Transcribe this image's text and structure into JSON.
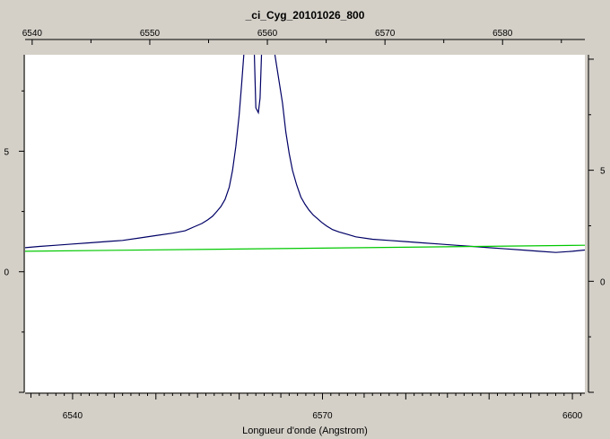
{
  "chart_data": {
    "type": "line",
    "title": "_ci_Cyg_20101026_800",
    "xlabel": "Longueur d'onde (Angstrom)",
    "ylabel": "",
    "xlim": [
      6534.3,
      6601.5
    ],
    "ylim": [
      -5.0,
      9.0
    ],
    "top_xlim": [
      6539.4,
      6587.0
    ],
    "right_ylim": [
      -5.0,
      10.2
    ],
    "x_ticks": [
      6540,
      6550,
      6560,
      6570,
      6580,
      6590,
      6600
    ],
    "x_tick_labels": [
      "6540",
      "",
      "6570",
      "",
      "6600"
    ],
    "x_tick_label_values": [
      6540,
      6550,
      6570,
      6590,
      6600
    ],
    "x_minor_step": 1,
    "top_ticks": [
      6540,
      6550,
      6560,
      6570,
      6580
    ],
    "top_tick_labels": [
      "6540",
      "6550",
      "6560",
      "6570",
      "6580"
    ],
    "top_minor_step": 5,
    "y_ticks": [
      -5,
      0,
      5
    ],
    "y_tick_labels": [
      "",
      "0",
      "5"
    ],
    "y_minor_step": 2.5,
    "right_ticks": [
      -5,
      0,
      5,
      10
    ],
    "right_tick_labels": [
      "",
      "0",
      "5",
      ""
    ],
    "right_minor_step": 2.5,
    "grid": false,
    "legend": "none",
    "series": [
      {
        "color": "#000066",
        "x": [
          6534.3,
          6536,
          6538,
          6540,
          6542,
          6544,
          6546,
          6548,
          6550,
          6552,
          6553.5,
          6554.5,
          6555.5,
          6556.2,
          6556.8,
          6557.3,
          6557.8,
          6558.3,
          6558.8,
          6559.2,
          6559.6,
          6560,
          6560.3,
          6560.6,
          6561.0,
          6561.8,
          6562.0,
          6562.3,
          6562.5,
          6562.7,
          6563.0,
          6564.2,
          6565.2,
          6565.6,
          6566.0,
          6566.4,
          6566.9,
          6567.4,
          6567.9,
          6568.4,
          6568.9,
          6569.4,
          6569.9,
          6570.5,
          6571.2,
          6572,
          6573,
          6574,
          6576,
          6578,
          6580,
          6582,
          6584,
          6586,
          6588,
          6590,
          6592,
          6594,
          6596,
          6598,
          6600,
          6601.5
        ],
        "y": [
          1.0,
          1.05,
          1.1,
          1.15,
          1.2,
          1.25,
          1.3,
          1.4,
          1.5,
          1.6,
          1.7,
          1.85,
          2.0,
          2.15,
          2.3,
          2.5,
          2.7,
          3.0,
          3.5,
          4.2,
          5.2,
          6.5,
          7.8,
          9.2,
          9.2,
          9.2,
          6.8,
          6.6,
          7.2,
          9.2,
          9.2,
          9.2,
          7.0,
          5.8,
          4.9,
          4.2,
          3.6,
          3.1,
          2.8,
          2.55,
          2.35,
          2.2,
          2.05,
          1.9,
          1.75,
          1.65,
          1.55,
          1.45,
          1.35,
          1.3,
          1.25,
          1.2,
          1.15,
          1.1,
          1.05,
          1.0,
          0.95,
          0.9,
          0.85,
          0.8,
          0.85,
          0.9
        ]
      },
      {
        "color": "#00c800",
        "x": [
          6534.3,
          6601.5
        ],
        "y": [
          0.85,
          1.1
        ]
      }
    ]
  }
}
